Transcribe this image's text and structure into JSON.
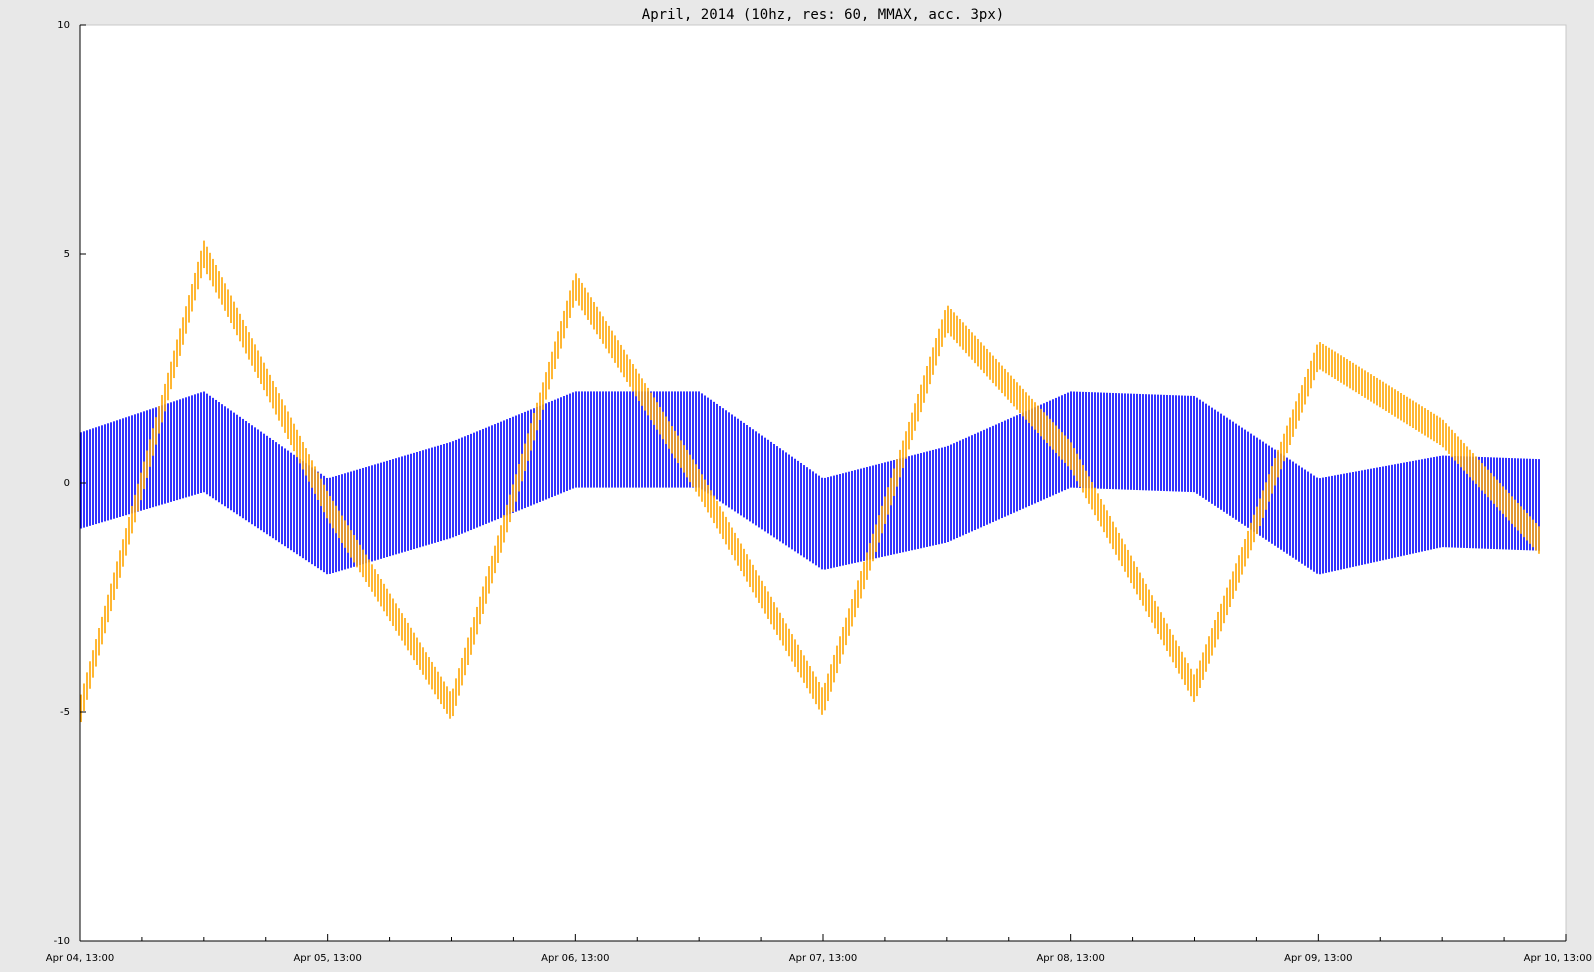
{
  "chart_data": {
    "type": "line",
    "title": "April, 2014 (10hz, res: 60, MMAX, acc. 3px)",
    "xlabel": "",
    "ylabel": "",
    "ylim": [
      -10,
      10
    ],
    "xlim": [
      "2014-04-04 13:00",
      "2014-04-10 13:00"
    ],
    "x_tick_labels": [
      "Apr 04, 13:00",
      "Apr 05, 13:00",
      "Apr 06, 13:00",
      "Apr 07, 13:00",
      "Apr 08, 13:00",
      "Apr 09, 13:00",
      "Apr 10, 13:00"
    ],
    "y_ticks": [
      -10,
      -5,
      0,
      5,
      10
    ],
    "y_tick_labels": [
      "-10",
      "-5",
      "0",
      "5",
      "10"
    ],
    "grid": false,
    "legend": "none",
    "series": [
      {
        "color": "#0000ff",
        "render": "min-max range bars",
        "x": [
          "2014-04-04 13:00",
          "2014-04-05 01:00",
          "2014-04-05 13:00",
          "2014-04-06 01:00",
          "2014-04-06 13:00",
          "2014-04-07 01:00",
          "2014-04-07 13:00",
          "2014-04-08 01:00",
          "2014-04-08 13:00",
          "2014-04-09 01:00",
          "2014-04-09 13:00",
          "2014-04-10 01:00",
          "2014-04-10 13:00"
        ],
        "min": [
          -1.0,
          -0.2,
          -2.0,
          -1.2,
          -0.1,
          -0.1,
          -1.9,
          -1.3,
          -0.1,
          -0.2,
          -2.0,
          -1.4,
          -1.5
        ],
        "max": [
          1.1,
          2.0,
          0.1,
          0.9,
          2.0,
          2.0,
          0.1,
          0.8,
          2.0,
          1.9,
          0.1,
          0.6,
          0.5
        ]
      },
      {
        "color": "#ffa500",
        "render": "min-max range bars",
        "x": [
          "2014-04-04 13:00",
          "2014-04-05 01:00",
          "2014-04-05 13:00",
          "2014-04-06 01:00",
          "2014-04-06 13:00",
          "2014-04-07 01:00",
          "2014-04-07 13:00",
          "2014-04-08 01:00",
          "2014-04-08 13:00",
          "2014-04-09 01:00",
          "2014-04-09 13:00",
          "2014-04-10 01:00",
          "2014-04-10 13:00"
        ],
        "min": [
          -5.3,
          4.7,
          -0.8,
          -5.2,
          4.0,
          -0.3,
          -5.1,
          3.3,
          0.3,
          -4.8,
          2.5,
          0.8,
          -2.2
        ],
        "max": [
          -4.7,
          5.3,
          -0.2,
          -4.6,
          4.6,
          0.3,
          -4.5,
          3.9,
          0.9,
          -4.2,
          3.1,
          1.4,
          -1.6
        ]
      }
    ]
  }
}
